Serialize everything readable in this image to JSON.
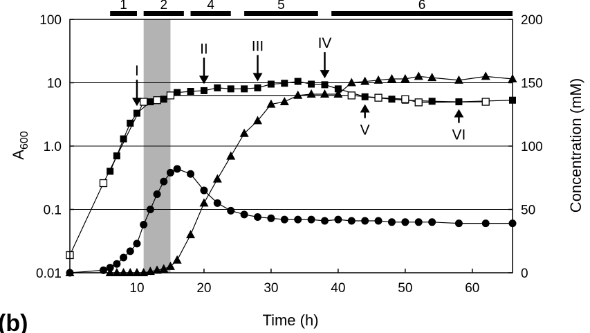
{
  "panel_label": "(b)",
  "chart_data": {
    "type": "scatter",
    "xlabel": "Time (h)",
    "ylabel_left": "A600",
    "ylabel_left_main": "A",
    "ylabel_left_sub": "600",
    "ylabel_right": "Concentration (mM)",
    "xlim": [
      0,
      66
    ],
    "ylim_left": [
      0.01,
      100
    ],
    "yscale_left": "log",
    "ylim_right": [
      0,
      200
    ],
    "x_ticks": [
      "10",
      "20",
      "30",
      "40",
      "50",
      "60"
    ],
    "x_tick_values": [
      10,
      20,
      30,
      40,
      50,
      60
    ],
    "y_left_ticks": [
      "0.01",
      "0.1",
      "1.0",
      "10",
      "100"
    ],
    "y_left_tick_values": [
      0.01,
      0.1,
      1,
      10,
      100
    ],
    "y_right_ticks": [
      "0",
      "50",
      "100",
      "150",
      "200"
    ],
    "y_right_tick_values": [
      0,
      50,
      100,
      150,
      200
    ],
    "grid": "horizontal",
    "shaded_region": [
      11,
      15
    ],
    "series": [
      {
        "axis": "left",
        "marker": "square-filled",
        "x": [
          6,
          7,
          8,
          9,
          10,
          12,
          14,
          16,
          18,
          20,
          22,
          24,
          26,
          28,
          30,
          32,
          34,
          36,
          38,
          40,
          44,
          48,
          50,
          54,
          58,
          66
        ],
        "y": [
          0.4,
          0.7,
          1.3,
          2.3,
          3.3,
          5.0,
          5.5,
          7.0,
          7.3,
          7.5,
          8.3,
          8.0,
          8.0,
          8.3,
          9.5,
          9.8,
          10.5,
          9.5,
          9.3,
          8.0,
          6.0,
          5.5,
          5.3,
          5.1,
          5.0,
          5.3
        ]
      },
      {
        "axis": "left",
        "marker": "square-open",
        "x": [
          0,
          5,
          11,
          13,
          15,
          42,
          46,
          50,
          52,
          62
        ],
        "y": [
          0.019,
          0.26,
          5.0,
          5.3,
          6.3,
          6.3,
          5.8,
          5.5,
          4.9,
          5.0
        ]
      },
      {
        "axis": "right",
        "marker": "circle-filled",
        "x": [
          0,
          5,
          6,
          7,
          8,
          9,
          10,
          11,
          12,
          13,
          14,
          15,
          16,
          18,
          20,
          22,
          24,
          26,
          28,
          30,
          32,
          34,
          36,
          38,
          40,
          42,
          44,
          46,
          48,
          50,
          52,
          54,
          58,
          62,
          66
        ],
        "y": [
          0,
          2,
          4,
          7,
          12,
          17,
          23,
          38,
          50,
          62,
          72,
          79,
          82,
          78,
          65,
          55,
          49,
          46,
          44,
          43,
          42,
          42,
          42,
          41,
          42,
          41,
          41,
          41,
          40,
          40,
          40,
          40,
          39,
          39,
          39
        ]
      },
      {
        "axis": "right",
        "marker": "triangle-filled",
        "x": [
          0,
          6,
          7,
          8,
          9,
          10,
          11,
          12,
          13,
          14,
          15,
          16,
          18,
          20,
          22,
          24,
          26,
          28,
          30,
          32,
          34,
          36,
          38,
          40,
          42,
          44,
          46,
          48,
          50,
          52,
          54,
          58,
          62,
          66
        ],
        "y": [
          0,
          0,
          0,
          0,
          0,
          0,
          0,
          1,
          2,
          3,
          5,
          10,
          30,
          55,
          74,
          92,
          110,
          120,
          133,
          135,
          140,
          141,
          141,
          141,
          150,
          151,
          152,
          153,
          153,
          155,
          154,
          152,
          155,
          153
        ]
      }
    ],
    "annotations_above": [
      {
        "label": "I",
        "x": 10,
        "y": 3.5
      },
      {
        "label": "II",
        "x": 20,
        "y": 7.8
      },
      {
        "label": "III",
        "x": 28,
        "y": 8.6
      },
      {
        "label": "IV",
        "x": 38,
        "y": 9.6
      }
    ],
    "annotations_below": [
      {
        "label": "V",
        "x": 44,
        "y": 5.6
      },
      {
        "label": "VI",
        "x": 58,
        "y": 4.7
      }
    ],
    "phases": [
      {
        "label": "1",
        "start": 6,
        "end": 10
      },
      {
        "label": "2",
        "start": 11,
        "end": 17
      },
      {
        "label": "4",
        "start": 18,
        "end": 24
      },
      {
        "label": "5",
        "start": 26,
        "end": 37
      },
      {
        "label": "6",
        "start": 39,
        "end": 66
      }
    ]
  }
}
